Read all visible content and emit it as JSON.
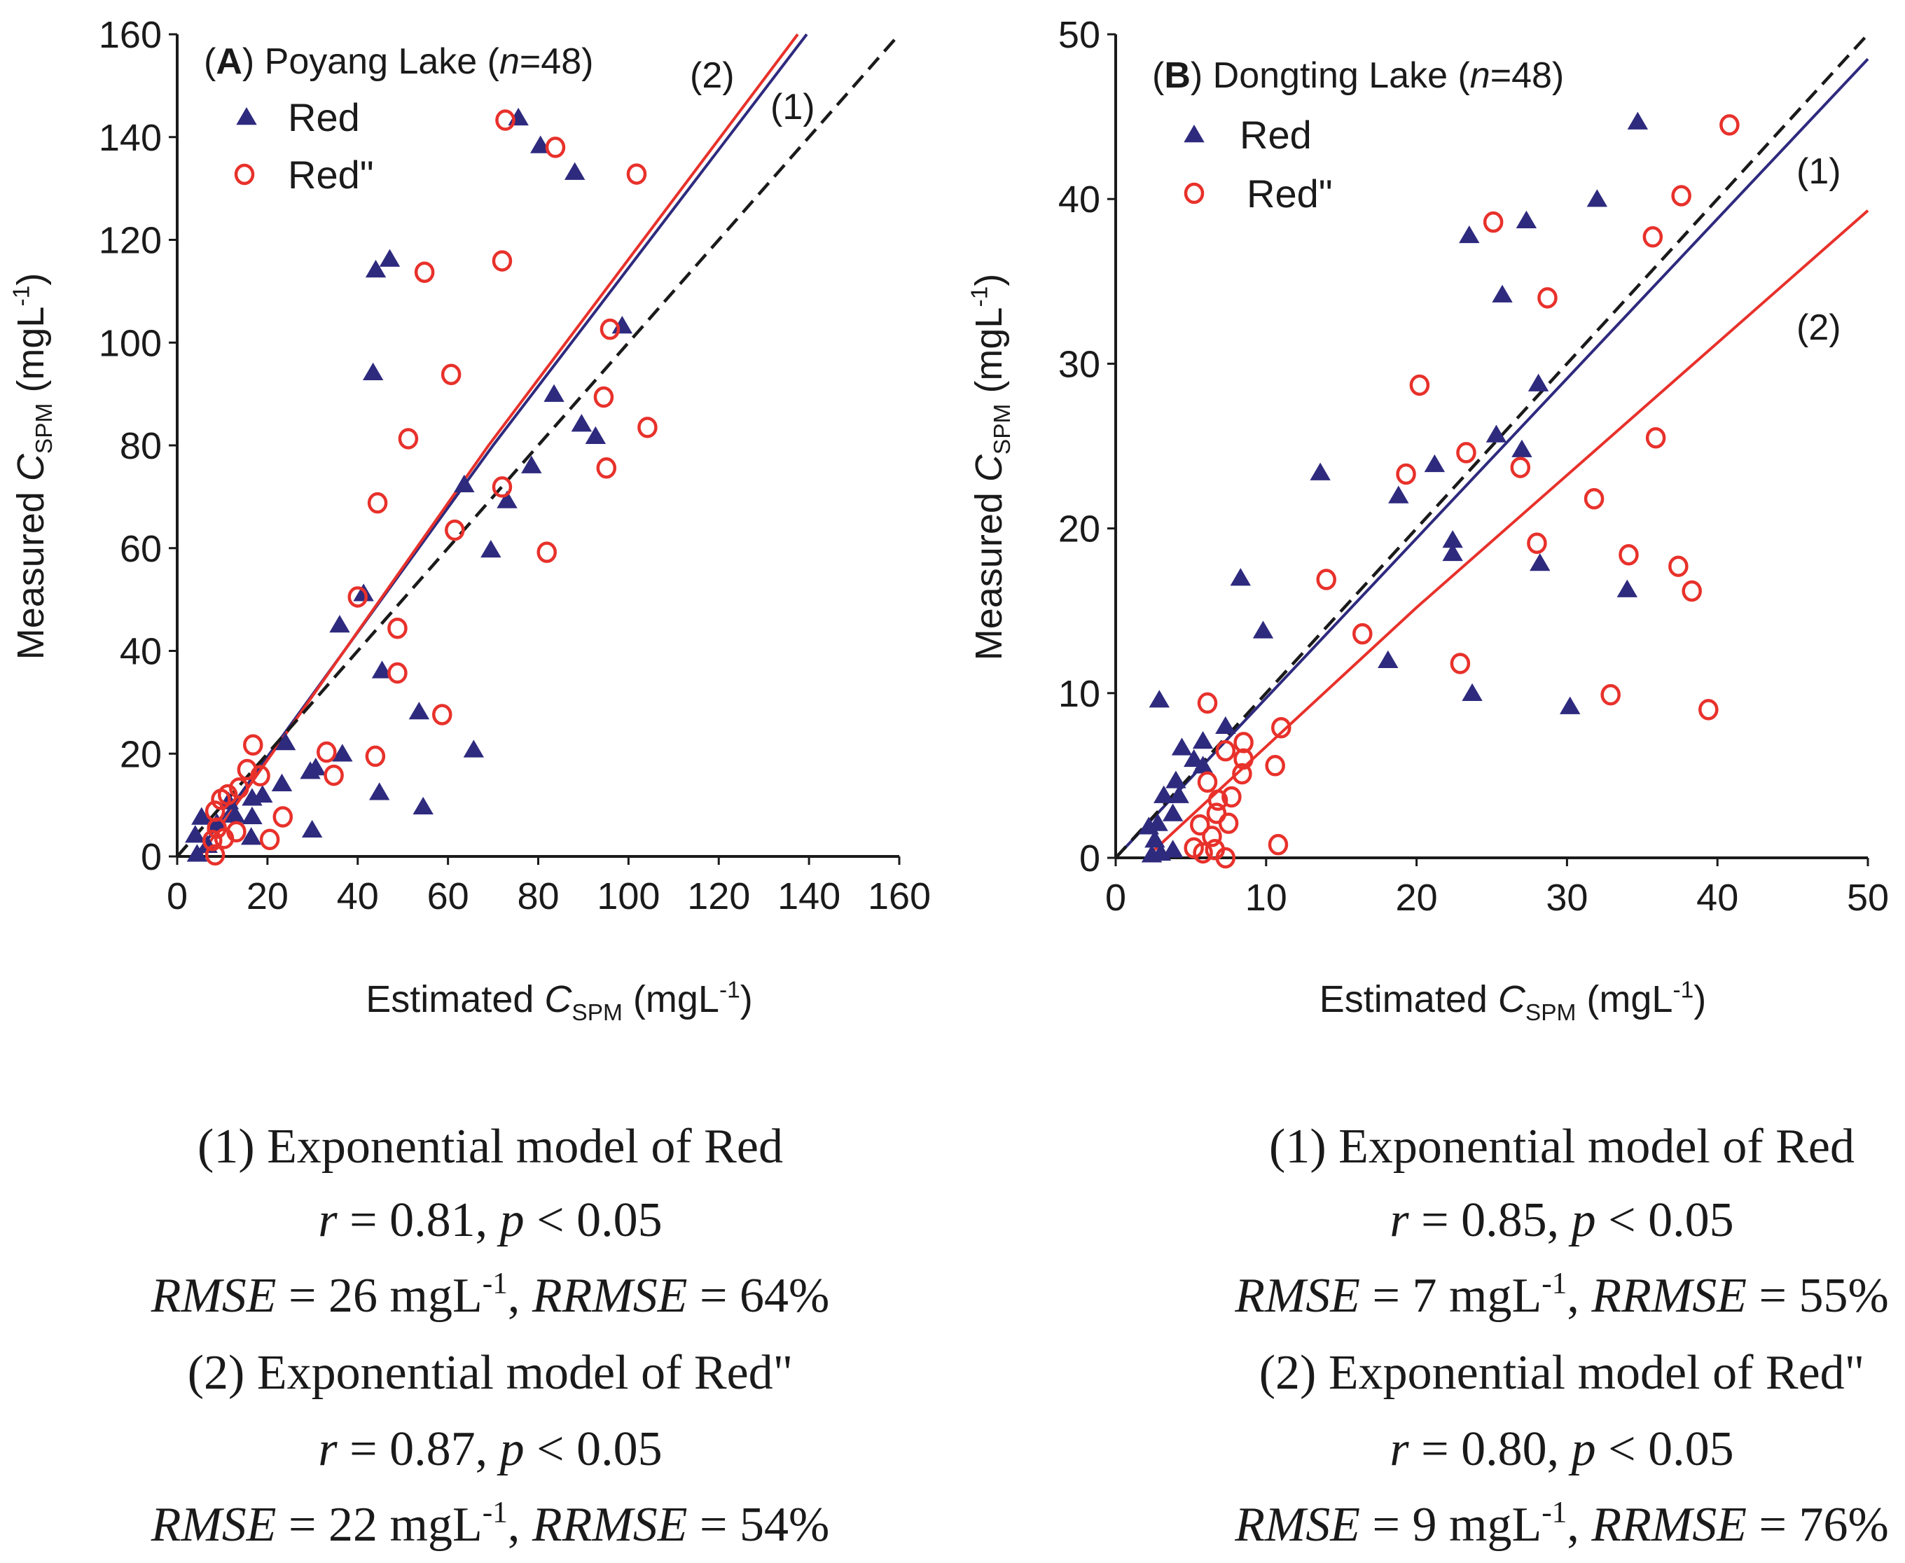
{
  "colors": {
    "red_series": "#2e2a7e",
    "redpp_series": "#e8312b",
    "axis": "#1a1a1a",
    "identity": "#1a1a1a"
  },
  "chart_data": [
    {
      "type": "scatter",
      "panel": "A",
      "title": [
        {
          "t": "(",
          "b": false
        },
        {
          "t": "A",
          "b": true
        },
        {
          "t": ") Poyang Lake ("
        },
        {
          "t": "n",
          "i": true
        },
        {
          "t": "=48)"
        }
      ],
      "xlabel": [
        {
          "t": "Estimated "
        },
        {
          "t": "C",
          "i": true
        },
        {
          "t": "SPM",
          "sub": true
        },
        {
          "t": " (mgL"
        },
        {
          "t": "-1",
          "sup": true
        },
        {
          "t": ")"
        }
      ],
      "ylabel": [
        {
          "t": "Measured "
        },
        {
          "t": "C",
          "i": true
        },
        {
          "t": "SPM",
          "sub": true
        },
        {
          "t": " (mgL"
        },
        {
          "t": "-1",
          "sup": true
        },
        {
          "t": ")"
        }
      ],
      "xlim": [
        0,
        160
      ],
      "ylim": [
        0,
        160
      ],
      "xticks": [
        "0",
        "20",
        "40",
        "60",
        "80",
        "100",
        "120",
        "140",
        "160"
      ],
      "yticks": [
        "0",
        "20",
        "40",
        "60",
        "80",
        "100",
        "120",
        "140",
        "160"
      ],
      "legend": [
        "Red",
        "Red\""
      ],
      "line_labels": [
        "(1)",
        "(2)"
      ],
      "series": [
        {
          "name": "Red",
          "marker": "triangle",
          "points": [
            [
              75.6,
              143.8
            ],
            [
              80.5,
              138.4
            ],
            [
              88.1,
              133.2
            ],
            [
              44,
              114.2
            ],
            [
              47.1,
              116.3
            ],
            [
              43.4,
              94.2
            ],
            [
              98.6,
              103.3
            ],
            [
              83.5,
              90
            ],
            [
              89.6,
              84.2
            ],
            [
              92.7,
              81.8
            ],
            [
              78.5,
              76.1
            ],
            [
              63.6,
              72.4
            ],
            [
              73.1,
              69.3
            ],
            [
              69.5,
              59.7
            ],
            [
              36,
              45.1
            ],
            [
              41.3,
              51.2
            ],
            [
              45.4,
              36.2
            ],
            [
              53.6,
              28.2
            ],
            [
              65.7,
              20.8
            ],
            [
              36.6,
              20
            ],
            [
              24,
              22.2
            ],
            [
              23.2,
              14.2
            ],
            [
              29.5,
              16.6
            ],
            [
              30.7,
              17.3
            ],
            [
              44.8,
              12.5
            ],
            [
              54.5,
              9.7
            ],
            [
              29.9,
              5.2
            ],
            [
              18.9,
              12
            ],
            [
              16.6,
              11.4
            ],
            [
              16.6,
              7.8
            ],
            [
              16.4,
              3.8
            ],
            [
              12.8,
              8.1
            ],
            [
              11.4,
              10.7
            ],
            [
              5.4,
              7.7
            ],
            [
              4,
              4.2
            ],
            [
              4.4,
              0.5
            ],
            [
              6.7,
              2.2
            ],
            [
              8.8,
              6.5
            ]
          ]
        },
        {
          "name": "Red\"",
          "marker": "circle",
          "points": [
            [
              72.7,
              143.3
            ],
            [
              83.8,
              138
            ],
            [
              101.8,
              132.8
            ],
            [
              54.8,
              113.7
            ],
            [
              72,
              115.9
            ],
            [
              60.7,
              93.8
            ],
            [
              51.2,
              81.3
            ],
            [
              95.9,
              102.6
            ],
            [
              94.5,
              89.4
            ],
            [
              104.2,
              83.5
            ],
            [
              95.1,
              75.6
            ],
            [
              44.4,
              68.8
            ],
            [
              72,
              71.9
            ],
            [
              61.5,
              63.5
            ],
            [
              81.9,
              59.2
            ],
            [
              40,
              50.5
            ],
            [
              48.8,
              44.4
            ],
            [
              48.8,
              35.7
            ],
            [
              58.7,
              27.6
            ],
            [
              33.1,
              20.3
            ],
            [
              43.9,
              19.5
            ],
            [
              34.7,
              15.8
            ],
            [
              16.8,
              21.7
            ],
            [
              15.5,
              16.9
            ],
            [
              18.4,
              15.7
            ],
            [
              23.4,
              7.7
            ],
            [
              20.5,
              3.3
            ],
            [
              13.1,
              4.8
            ],
            [
              9.7,
              11.1
            ],
            [
              11.2,
              12
            ],
            [
              8.4,
              8.8
            ],
            [
              8.8,
              5.5
            ],
            [
              7.8,
              3.1
            ],
            [
              8.4,
              0.3
            ],
            [
              10.4,
              3.5
            ],
            [
              13.7,
              13.3
            ]
          ]
        }
      ],
      "fit_lines": [
        {
          "name": "(1) Exponential model of Red",
          "color_key": "red_series",
          "points": [
            [
              4,
              0
            ],
            [
              70,
              80
            ],
            [
              139.5,
              160
            ]
          ]
        },
        {
          "name": "(2) Exponential model of Red\"",
          "color_key": "redpp_series",
          "points": [
            [
              5,
              0
            ],
            [
              69,
              80
            ],
            [
              137.5,
              160
            ]
          ]
        },
        {
          "name": "1:1",
          "dashed": true,
          "points": [
            [
              0,
              0
            ],
            [
              160,
              160
            ]
          ]
        }
      ],
      "caption": [
        [
          {
            "t": "(1) Exponential model of Red"
          }
        ],
        [
          {
            "t": "r",
            "i": true
          },
          {
            "t": " = 0.81, "
          },
          {
            "t": "p",
            "i": true
          },
          {
            "t": " < 0.05"
          }
        ],
        [
          {
            "t": "RMSE",
            "i": true
          },
          {
            "t": " = 26 mgL"
          },
          {
            "t": "-1",
            "sup": true
          },
          {
            "t": ", "
          },
          {
            "t": "RRMSE",
            "i": true
          },
          {
            "t": " = 64%"
          }
        ],
        [
          {
            "t": "(2) Exponential model of Red\""
          }
        ],
        [
          {
            "t": "r",
            "i": true
          },
          {
            "t": " = 0.87, "
          },
          {
            "t": "p",
            "i": true
          },
          {
            "t": " < 0.05"
          }
        ],
        [
          {
            "t": "RMSE",
            "i": true
          },
          {
            "t": " = 22 mgL"
          },
          {
            "t": "-1",
            "sup": true
          },
          {
            "t": ", "
          },
          {
            "t": "RRMSE",
            "i": true
          },
          {
            "t": " = 54%"
          }
        ]
      ]
    },
    {
      "type": "scatter",
      "panel": "B",
      "title": [
        {
          "t": "("
        },
        {
          "t": "B",
          "b": true
        },
        {
          "t": ") Dongting Lake ("
        },
        {
          "t": "n",
          "i": true
        },
        {
          "t": "=48)"
        }
      ],
      "xlabel": [
        {
          "t": "Estimated "
        },
        {
          "t": "C",
          "i": true
        },
        {
          "t": "SPM",
          "sub": true
        },
        {
          "t": " (mgL"
        },
        {
          "t": "-1",
          "sup": true
        },
        {
          "t": ")"
        }
      ],
      "ylabel": [
        {
          "t": "Measured "
        },
        {
          "t": "C",
          "i": true
        },
        {
          "t": "SPM",
          "sub": true
        },
        {
          "t": " (mgL"
        },
        {
          "t": "-1",
          "sup": true
        },
        {
          "t": ")"
        }
      ],
      "xlim": [
        0,
        50
      ],
      "ylim": [
        0,
        50
      ],
      "xticks": [
        "0",
        "10",
        "20",
        "30",
        "40",
        "50"
      ],
      "yticks": [
        "0",
        "10",
        "20",
        "30",
        "40",
        "50"
      ],
      "legend": [
        "Red",
        "Red\""
      ],
      "line_labels": [
        "(1)",
        "(2)"
      ],
      "series": [
        {
          "name": "Red",
          "marker": "triangle",
          "points": [
            [
              34.7,
              44.7
            ],
            [
              32,
              40
            ],
            [
              27.3,
              38.7
            ],
            [
              23.5,
              37.8
            ],
            [
              25.7,
              34.2
            ],
            [
              28.1,
              28.8
            ],
            [
              25.3,
              25.7
            ],
            [
              27,
              24.8
            ],
            [
              21.2,
              23.9
            ],
            [
              13.6,
              23.4
            ],
            [
              18.8,
              22
            ],
            [
              22.4,
              19.3
            ],
            [
              22.4,
              18.5
            ],
            [
              28.2,
              17.9
            ],
            [
              34,
              16.3
            ],
            [
              8.3,
              17
            ],
            [
              18.1,
              12
            ],
            [
              9.8,
              13.8
            ],
            [
              23.7,
              10
            ],
            [
              30.2,
              9.2
            ],
            [
              2.9,
              9.6
            ],
            [
              7.3,
              8
            ],
            [
              5.8,
              7.1
            ],
            [
              4.4,
              6.7
            ],
            [
              5.2,
              6
            ],
            [
              5.8,
              5.6
            ],
            [
              4,
              4.7
            ],
            [
              3.2,
              3.8
            ],
            [
              4.2,
              3.8
            ],
            [
              3.8,
              2.7
            ],
            [
              2.8,
              2.1
            ],
            [
              2.2,
              1.9
            ],
            [
              2.6,
              1.1
            ],
            [
              3,
              0.3
            ],
            [
              3.8,
              0.5
            ],
            [
              2.4,
              0.2
            ]
          ]
        },
        {
          "name": "Red\"",
          "marker": "circle",
          "points": [
            [
              40.8,
              44.5
            ],
            [
              37.6,
              40.2
            ],
            [
              35.7,
              37.7
            ],
            [
              25.1,
              38.6
            ],
            [
              28.7,
              34
            ],
            [
              20.2,
              28.7
            ],
            [
              35.9,
              25.5
            ],
            [
              23.3,
              24.6
            ],
            [
              19.3,
              23.3
            ],
            [
              26.9,
              23.7
            ],
            [
              31.8,
              21.8
            ],
            [
              28,
              19.1
            ],
            [
              34.1,
              18.4
            ],
            [
              37.4,
              17.7
            ],
            [
              38.3,
              16.2
            ],
            [
              14,
              16.9
            ],
            [
              16.4,
              13.6
            ],
            [
              22.9,
              11.8
            ],
            [
              32.9,
              9.9
            ],
            [
              39.4,
              9
            ],
            [
              6.1,
              9.4
            ],
            [
              11,
              7.9
            ],
            [
              8.5,
              7
            ],
            [
              7.3,
              6.5
            ],
            [
              8.5,
              6
            ],
            [
              8.4,
              5.1
            ],
            [
              10.6,
              5.6
            ],
            [
              6.1,
              4.6
            ],
            [
              6.8,
              3.5
            ],
            [
              7.7,
              3.7
            ],
            [
              7.5,
              2.1
            ],
            [
              5.6,
              2
            ],
            [
              6.7,
              2.7
            ],
            [
              6.4,
              1.3
            ],
            [
              5.2,
              0.6
            ],
            [
              10.8,
              0.8
            ],
            [
              6.6,
              0.5
            ],
            [
              7.3,
              0
            ],
            [
              5.8,
              0.3
            ]
          ]
        }
      ],
      "fit_lines": [
        {
          "name": "(1) Exponential model of Red",
          "color_key": "red_series",
          "points": [
            [
              0,
              0
            ],
            [
              50,
              48.5
            ]
          ]
        },
        {
          "name": "(2) Exponential model of Red\"",
          "color_key": "redpp_series",
          "points": [
            [
              2,
              0
            ],
            [
              20,
              15.2
            ],
            [
              50,
              39.3
            ]
          ]
        },
        {
          "name": "1:1",
          "dashed": true,
          "points": [
            [
              0,
              0
            ],
            [
              50,
              50
            ]
          ]
        }
      ],
      "caption": [
        [
          {
            "t": "(1) Exponential model of Red"
          }
        ],
        [
          {
            "t": "r",
            "i": true
          },
          {
            "t": " = 0.85, "
          },
          {
            "t": "p",
            "i": true
          },
          {
            "t": " < 0.05"
          }
        ],
        [
          {
            "t": "RMSE",
            "i": true
          },
          {
            "t": " = 7 mgL"
          },
          {
            "t": "-1",
            "sup": true
          },
          {
            "t": ", "
          },
          {
            "t": "RRMSE",
            "i": true
          },
          {
            "t": " = 55%"
          }
        ],
        [
          {
            "t": "(2) Exponential model of Red\""
          }
        ],
        [
          {
            "t": "r",
            "i": true
          },
          {
            "t": " = 0.80, "
          },
          {
            "t": "p",
            "i": true
          },
          {
            "t": " < 0.05"
          }
        ],
        [
          {
            "t": "RMSE",
            "i": true
          },
          {
            "t": " = 9 mgL"
          },
          {
            "t": "-1",
            "sup": true
          },
          {
            "t": ", "
          },
          {
            "t": "RRMSE",
            "i": true
          },
          {
            "t": " = 76%"
          }
        ]
      ]
    }
  ]
}
